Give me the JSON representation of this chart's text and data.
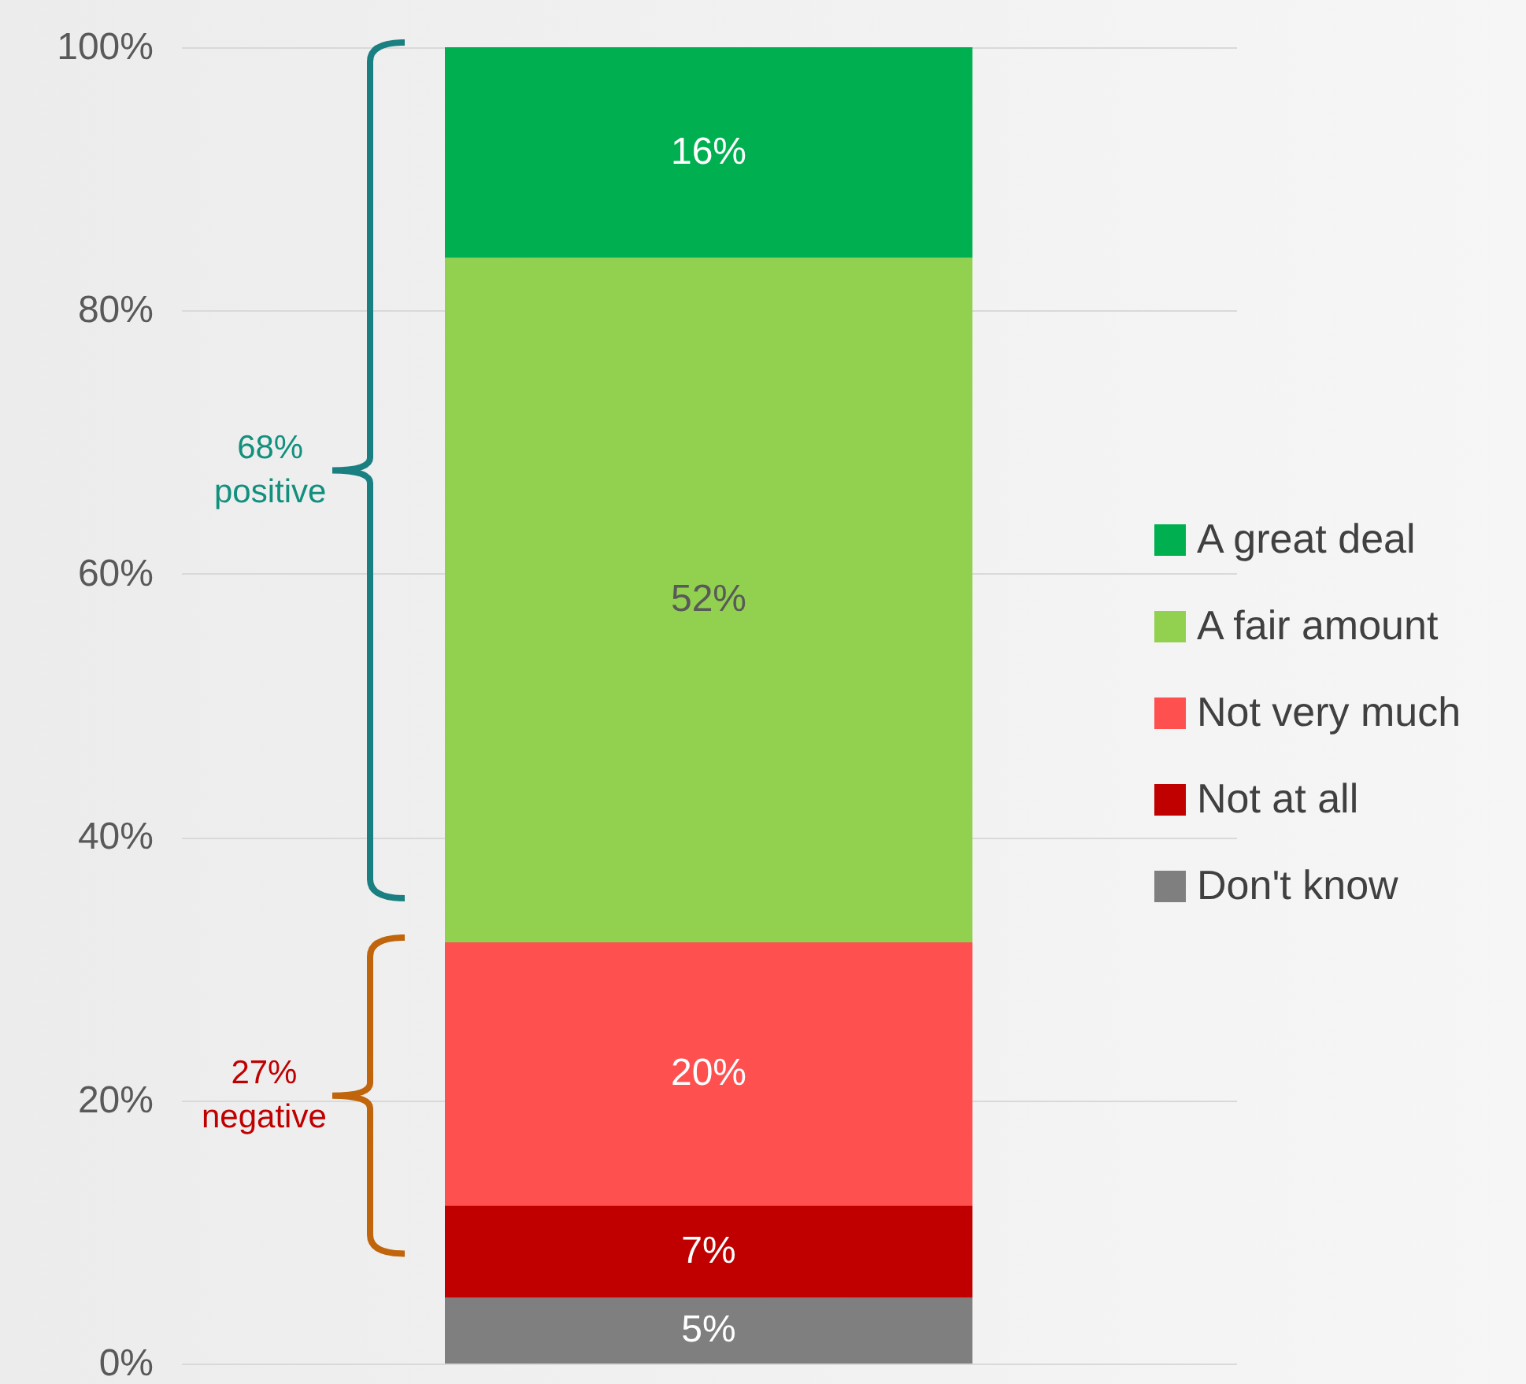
{
  "chart_data": {
    "type": "bar",
    "stacked": true,
    "categories": [
      null
    ],
    "series": [
      {
        "name": "Don't know",
        "color": "#7f7f7f",
        "values": [
          5
        ]
      },
      {
        "name": "Not at all",
        "color": "#c00000",
        "values": [
          7
        ]
      },
      {
        "name": "Not very much",
        "color": "#ff5050",
        "values": [
          20
        ]
      },
      {
        "name": "A fair amount",
        "color": "#92d050",
        "values": [
          52
        ]
      },
      {
        "name": "A great deal",
        "color": "#00b050",
        "values": [
          16
        ]
      }
    ],
    "ylim": [
      0,
      100
    ],
    "yticks": [
      {
        "value": 0,
        "label": "0%"
      },
      {
        "value": 20,
        "label": "20%"
      },
      {
        "value": 40,
        "label": "40%"
      },
      {
        "value": 60,
        "label": "60%"
      },
      {
        "value": 80,
        "label": "80%"
      },
      {
        "value": 100,
        "label": "100%"
      }
    ],
    "grid": "y",
    "legend": "right",
    "tick_labels": "y",
    "value_labels": [
      "5%",
      "7%",
      "20%",
      "52%",
      "16%"
    ],
    "annotations": [
      "68%\npositive",
      "27%\nnegative"
    ]
  }
}
